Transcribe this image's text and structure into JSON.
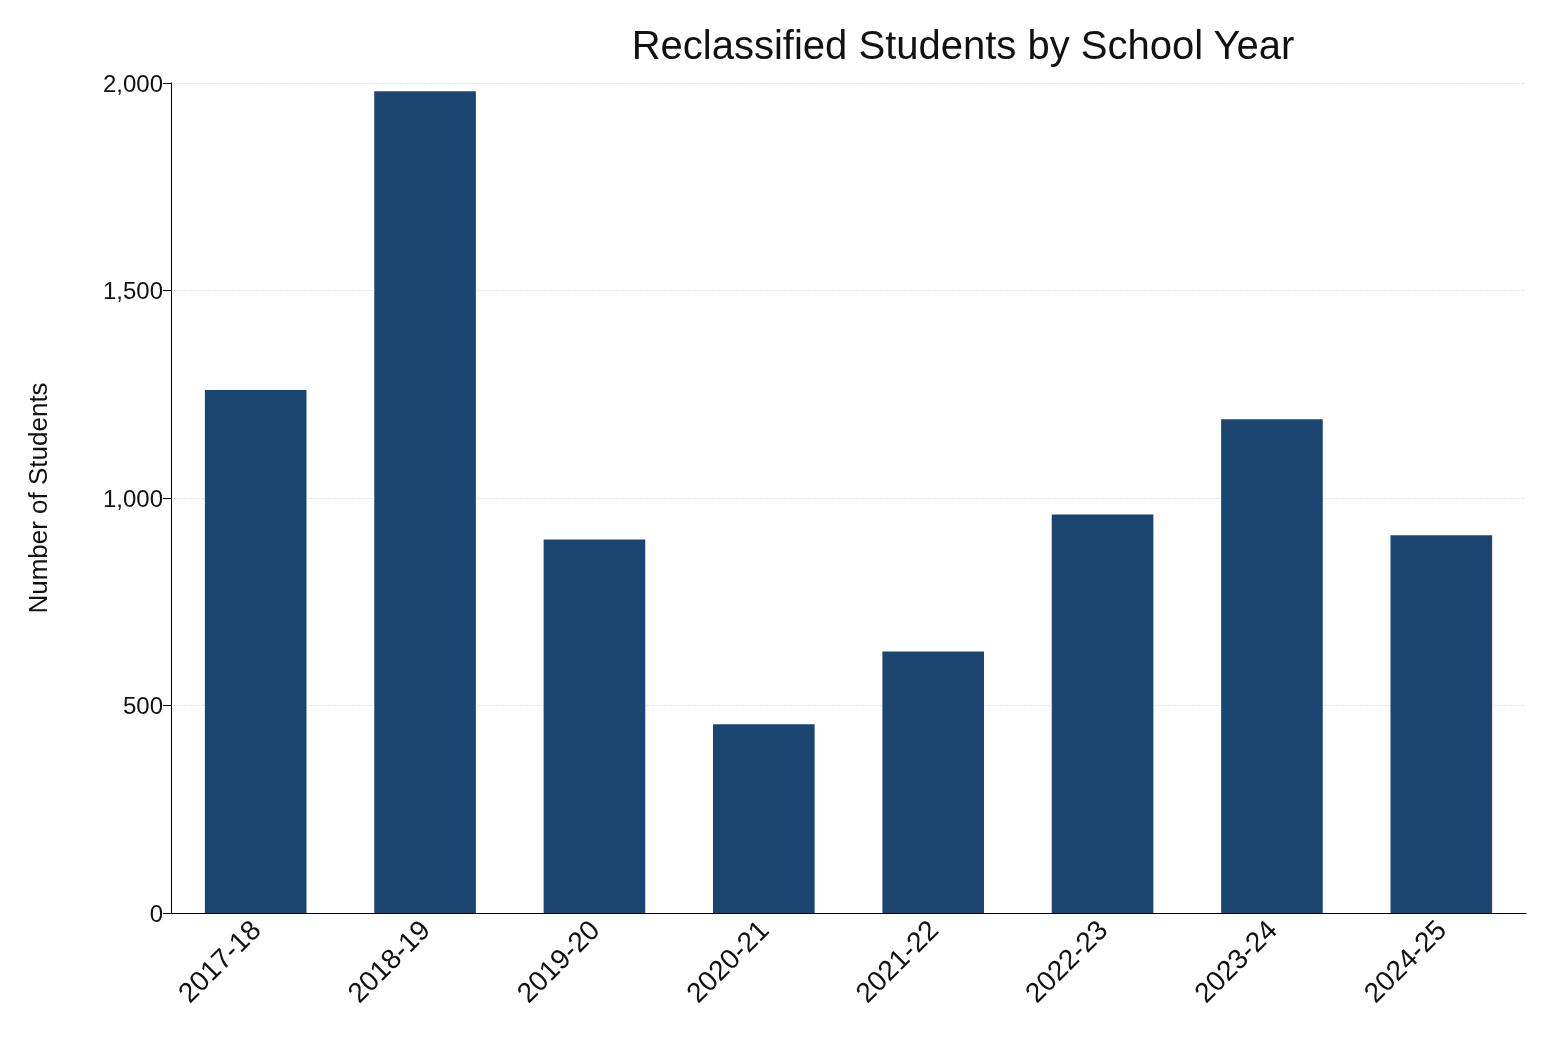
{
  "chart_data": {
    "type": "bar",
    "title": "Reclassified Students by School Year",
    "ylabel": "Number of Students",
    "categories": [
      "2017-18",
      "2018-19",
      "2019-20",
      "2020-21",
      "2021-22",
      "2022-23",
      "2023-24",
      "2024-25"
    ],
    "values": [
      1260,
      1980,
      900,
      455,
      630,
      960,
      1190,
      910
    ],
    "color": "#1a4570",
    "ylim": [
      0,
      2000
    ],
    "yticks": [
      0,
      {
        "value": 500,
        "label": "500"
      },
      {
        "value": 1000,
        "label": "1,000"
      },
      {
        "value": 1500,
        "label": "1,500"
      },
      {
        "value": 2000,
        "label": "2,000"
      }
    ],
    "grid": "y"
  }
}
